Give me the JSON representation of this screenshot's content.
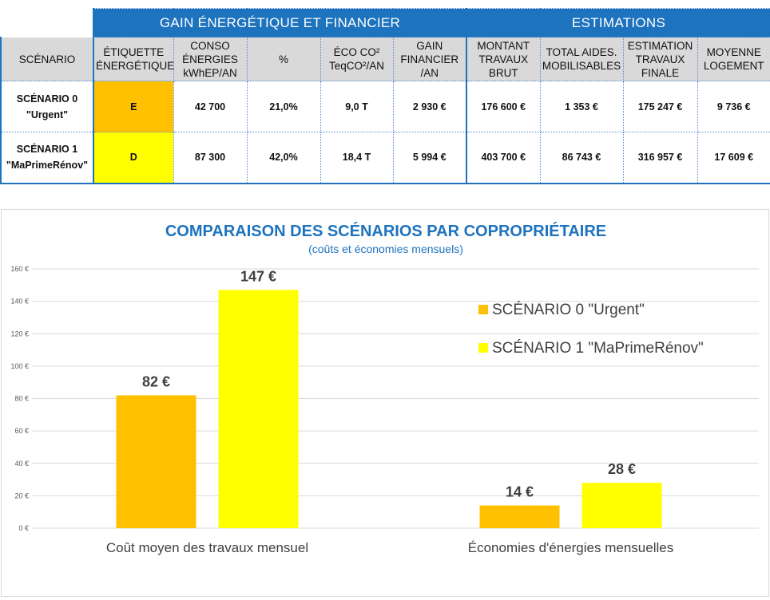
{
  "table": {
    "band": {
      "gain": "GAIN ÉNERGÉTIQUE ET FINANCIER",
      "estimations": "ESTIMATIONS"
    },
    "headers": {
      "scenario": "SCÉNARIO",
      "etiquette": "ÉTIQUETTE ÉNERGÉTIQUE",
      "conso": "CONSO ÉNERGIES kWhEP/AN",
      "pct": "%",
      "eco_co2": "ÉCO CO² TeqCO²/AN",
      "gain_fin": "GAIN FINANCIER /AN",
      "montant": "MONTANT TRAVAUX BRUT",
      "aides": "TOTAL AIDES. MOBILISABLES",
      "estimation": "ESTIMATION TRAVAUX FINALE",
      "moyenne": "MOYENNE LOGEMENT"
    },
    "rows": [
      {
        "scenario_line1": "SCÉNARIO 0",
        "scenario_line2": "\"Urgent\"",
        "etiquette": "E",
        "etiquette_color": "#ffc000",
        "conso": "42 700",
        "pct": "21,0%",
        "eco_co2": "9,0 T",
        "gain_fin": "2 930 €",
        "montant": "176 600 €",
        "aides": "1 353 €",
        "estimation": "175 247 €",
        "moyenne": "9 736 €"
      },
      {
        "scenario_line1": "SCÉNARIO 1",
        "scenario_line2": "\"MaPrimeRénov\"",
        "etiquette": "D",
        "etiquette_color": "#ffff00",
        "conso": "87 300",
        "pct": "42,0%",
        "eco_co2": "18,4 T",
        "gain_fin": "5 994 €",
        "montant": "403 700 €",
        "aides": "86 743 €",
        "estimation": "316 957 €",
        "moyenne": "17 609 €"
      }
    ]
  },
  "chart_data": {
    "type": "bar",
    "title": "COMPARAISON DES SCÉNARIOS PAR COPROPRIÉTAIRE",
    "subtitle": "(coûts et économies mensuels)",
    "categories": [
      "Coût moyen des travaux mensuel",
      "Économies d'énergies mensuelles"
    ],
    "series": [
      {
        "name": "SCÉNARIO 0 \"Urgent\"",
        "color": "#ffc000",
        "values": [
          82,
          14
        ],
        "labels": [
          "82 €",
          "14 €"
        ]
      },
      {
        "name": "SCÉNARIO 1 \"MaPrimeRénov\"",
        "color": "#ffff00",
        "values": [
          147,
          28
        ],
        "labels": [
          "147 €",
          "28 €"
        ]
      }
    ],
    "ylim": [
      0,
      160
    ],
    "yticks": [
      0,
      20,
      40,
      60,
      80,
      100,
      120,
      140,
      160
    ],
    "ytick_labels": [
      "0 €",
      "20 €",
      "40 €",
      "60 €",
      "80 €",
      "100 €",
      "120 €",
      "140 €",
      "160 €"
    ],
    "grid": true,
    "legend": "right"
  }
}
